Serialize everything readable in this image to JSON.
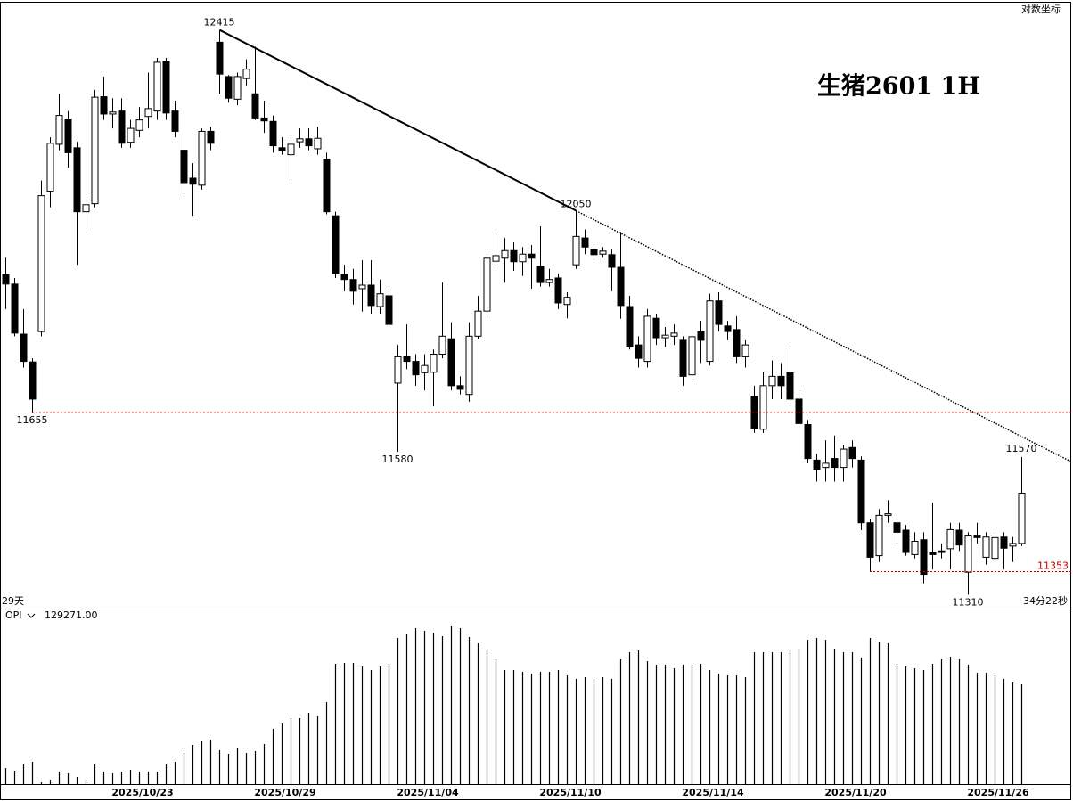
{
  "chart_data": {
    "type": "candlestick",
    "title": "生猪2601  1H",
    "scale_label": "对数坐标",
    "log_scale": true,
    "period_label": "29天",
    "countdown_label": "34分22秒",
    "ylim": [
      11284,
      12473
    ],
    "up_color": "#ffffff",
    "down_color": "#000000",
    "line_color": "#000000",
    "support_color": "#c00000",
    "categories": [
      null,
      null,
      null,
      null,
      null,
      null,
      null,
      null,
      null,
      null,
      null,
      null,
      null,
      null,
      null,
      "2025/10/23",
      null,
      null,
      null,
      null,
      null,
      null,
      null,
      null,
      null,
      null,
      null,
      null,
      null,
      null,
      null,
      "2025/10/29",
      null,
      null,
      null,
      null,
      null,
      null,
      null,
      null,
      null,
      null,
      null,
      null,
      null,
      null,
      null,
      "2025/11/04",
      null,
      null,
      null,
      null,
      null,
      null,
      null,
      null,
      null,
      null,
      null,
      null,
      null,
      null,
      null,
      "2025/11/10",
      null,
      null,
      null,
      null,
      null,
      null,
      null,
      null,
      null,
      null,
      null,
      null,
      null,
      null,
      null,
      "2025/11/14",
      null,
      null,
      null,
      null,
      null,
      null,
      null,
      null,
      null,
      null,
      null,
      null,
      null,
      null,
      null,
      "2025/11/20",
      null,
      null,
      null,
      null,
      null,
      null,
      null,
      null,
      null,
      null,
      null,
      null,
      null,
      null,
      null,
      "2025/11/26",
      null,
      null,
      null
    ],
    "ohlc": {
      "open": [
        11924,
        11905,
        11807,
        11753,
        11812,
        12089,
        12183,
        12234,
        12176,
        12048,
        12064,
        12279,
        12244,
        12250,
        12187,
        12211,
        12239,
        12250,
        12351,
        12250,
        12171,
        12115,
        12101,
        12209,
        12390,
        12320,
        12274,
        12316,
        12285,
        12236,
        12229,
        12176,
        12162,
        12188,
        12194,
        12174,
        12153,
        12040,
        11924,
        11914,
        11896,
        11903,
        11861,
        11882,
        11712,
        11763,
        11754,
        11732,
        11733,
        11768,
        11798,
        11707,
        11690,
        11803,
        11852,
        11950,
        11956,
        11971,
        11949,
        11964,
        11940,
        11908,
        11917,
        11865,
        11943,
        11996,
        11973,
        11964,
        11963,
        11938,
        11861,
        11786,
        11754,
        11838,
        11800,
        11803,
        11795,
        11728,
        11812,
        11754,
        11872,
        11823,
        11816,
        11763,
        11686,
        11623,
        11707,
        11725,
        11732,
        11681,
        11632,
        11564,
        11550,
        11567,
        11550,
        11588,
        11564,
        11445,
        11383,
        11459,
        11445,
        11431,
        11385,
        11413,
        11389,
        11392,
        11396,
        11431,
        11352,
        11420,
        11380,
        11378,
        11418,
        11401,
        11406
      ],
      "high": [
        11957,
        11917,
        11856,
        11760,
        12110,
        12197,
        12285,
        12250,
        12188,
        12083,
        12293,
        12320,
        12276,
        12276,
        12232,
        12258,
        12328,
        12358,
        12358,
        12271,
        12215,
        12145,
        12215,
        12218,
        12415,
        12323,
        12328,
        12355,
        12381,
        12271,
        12241,
        12197,
        12197,
        12215,
        12215,
        12218,
        12166,
        12048,
        11943,
        11935,
        11952,
        11952,
        11914,
        11891,
        11786,
        11826,
        11768,
        11768,
        11777,
        11908,
        11830,
        11725,
        11830,
        11882,
        11970,
        12013,
        11996,
        11987,
        11978,
        11982,
        12019,
        11935,
        11926,
        11889,
        12050,
        12013,
        11984,
        11978,
        11973,
        12008,
        11882,
        11803,
        11856,
        11847,
        11821,
        11826,
        11803,
        11819,
        11833,
        11886,
        11889,
        11833,
        11842,
        11795,
        11707,
        11733,
        11756,
        11751,
        11786,
        11698,
        11641,
        11576,
        11602,
        11611,
        11593,
        11602,
        11571,
        11453,
        11471,
        11488,
        11462,
        11441,
        11427,
        11427,
        11483,
        11406,
        11445,
        11445,
        11427,
        11445,
        11427,
        11427,
        11427,
        11418,
        11570
      ],
      "low": [
        11856,
        11803,
        11742,
        11655,
        11803,
        12057,
        12171,
        12136,
        11943,
        12013,
        12057,
        12232,
        12215,
        12176,
        12176,
        12197,
        12215,
        12232,
        12232,
        12197,
        12083,
        12040,
        12092,
        12171,
        12285,
        12267,
        12262,
        12302,
        12232,
        12206,
        12166,
        12162,
        12110,
        12176,
        12171,
        12162,
        12043,
        11917,
        11891,
        11865,
        11851,
        11847,
        11847,
        11821,
        11580,
        11739,
        11707,
        11698,
        11667,
        11760,
        11698,
        11690,
        11676,
        11798,
        11844,
        11935,
        11908,
        11931,
        11921,
        11896,
        11900,
        11900,
        11856,
        11838,
        11935,
        11964,
        11952,
        11957,
        11891,
        11837,
        11777,
        11742,
        11742,
        11786,
        11782,
        11786,
        11707,
        11719,
        11751,
        11746,
        11812,
        11795,
        11751,
        11742,
        11616,
        11616,
        11681,
        11681,
        11672,
        11628,
        11558,
        11523,
        11523,
        11523,
        11523,
        11550,
        11431,
        11353,
        11371,
        11445,
        11406,
        11383,
        11378,
        11331,
        11357,
        11378,
        11357,
        11392,
        11310,
        11406,
        11366,
        11371,
        11357,
        11371,
        11401
      ],
      "close": [
        11905,
        11809,
        11754,
        11681,
        12080,
        12185,
        12241,
        12166,
        12048,
        12062,
        12278,
        12244,
        12248,
        12185,
        12215,
        12232,
        12255,
        12349,
        12246,
        12209,
        12106,
        12103,
        12209,
        12185,
        12325,
        12276,
        12320,
        12335,
        12236,
        12230,
        12180,
        12171,
        12183,
        12194,
        12180,
        12195,
        12048,
        11926,
        11914,
        11891,
        11903,
        11863,
        11886,
        11826,
        11763,
        11754,
        11728,
        11746,
        11768,
        11803,
        11707,
        11700,
        11803,
        11852,
        11956,
        11961,
        11971,
        11949,
        11964,
        11956,
        11908,
        11914,
        11868,
        11879,
        11999,
        11978,
        11963,
        11970,
        11938,
        11863,
        11782,
        11760,
        11842,
        11800,
        11805,
        11809,
        11725,
        11802,
        11795,
        11872,
        11826,
        11812,
        11763,
        11786,
        11625,
        11707,
        11725,
        11707,
        11681,
        11634,
        11567,
        11546,
        11558,
        11550,
        11585,
        11567,
        11445,
        11380,
        11459,
        11462,
        11427,
        11389,
        11410,
        11348,
        11385,
        11389,
        11432,
        11403,
        11420,
        11417,
        11418,
        11417,
        11397,
        11406,
        11501
      ]
    },
    "opi": {
      "name": "OPI",
      "value_label": "129271.00",
      "ylim": [
        0,
        225000
      ],
      "color": "#000000",
      "values": [
        20772,
        17310,
        25388,
        28850,
        2308,
        5770,
        16156,
        13848,
        9232,
        5770,
        25388,
        16156,
        13848,
        16156,
        18464,
        16156,
        16156,
        16156,
        25388,
        28850,
        40390,
        50776,
        55392,
        57700,
        43852,
        39236,
        46160,
        40390,
        42698,
        51930,
        71548,
        78472,
        85396,
        85396,
        92320,
        87704,
        106168,
        155790,
        156944,
        156944,
        152328,
        147712,
        152328,
        155790,
        189256,
        193872,
        201950,
        198488,
        196180,
        191564,
        204258,
        201950,
        190410,
        182332,
        173100,
        161560,
        147712,
        147712,
        145404,
        143096,
        145404,
        145404,
        147712,
        140788,
        136172,
        138480,
        136172,
        138480,
        136172,
        161560,
        170792,
        173100,
        159252,
        154636,
        154636,
        150020,
        154636,
        154636,
        155790,
        147712,
        143096,
        140788,
        140788,
        138480,
        170792,
        170792,
        170792,
        170792,
        173100,
        175408,
        186948,
        189256,
        186948,
        175408,
        170792,
        170792,
        163868,
        189256,
        184640,
        182332,
        155790,
        152328,
        150020,
        147712,
        155790,
        161560,
        165022,
        161560,
        154636,
        144250,
        144250,
        140788,
        136172,
        131556,
        129271
      ]
    }
  }
}
